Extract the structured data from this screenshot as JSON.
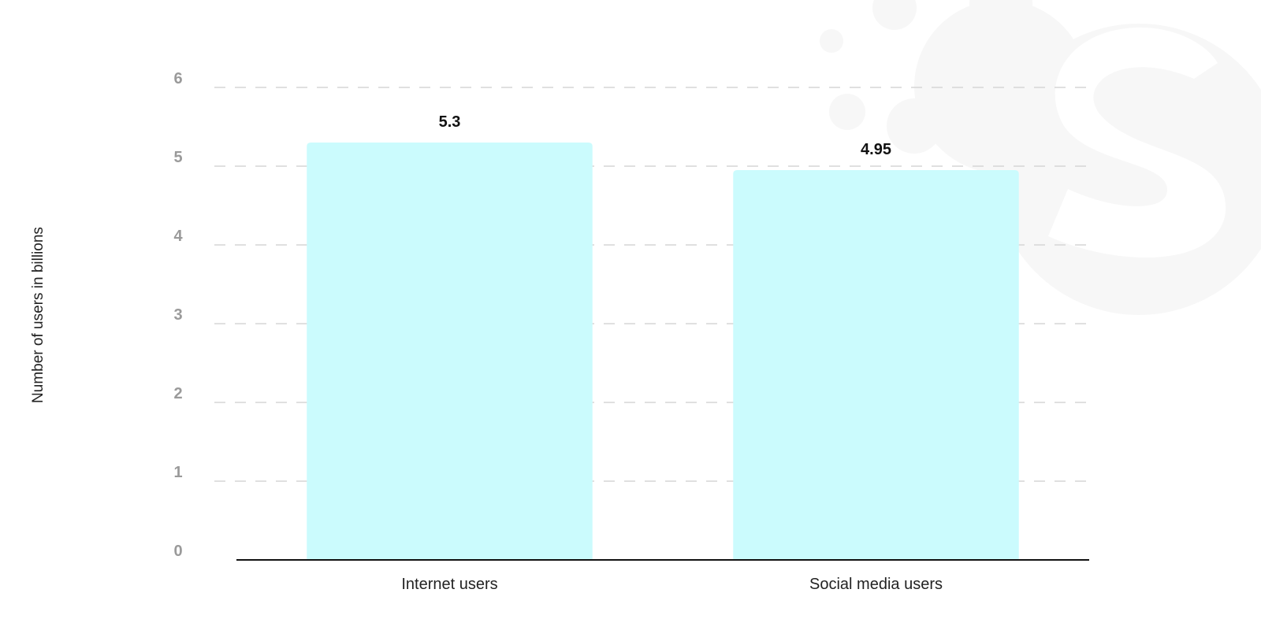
{
  "chart_data": {
    "type": "bar",
    "categories": [
      "Internet users",
      "Social media users"
    ],
    "values": [
      5.3,
      4.95
    ],
    "data_labels": [
      "5.3",
      "4.95"
    ],
    "title": "",
    "xlabel": "",
    "ylabel": "Number of users in billions",
    "ylim": [
      0,
      6
    ],
    "yticks": [
      "0",
      "1",
      "2",
      "3",
      "4",
      "5",
      "6"
    ],
    "grid": true,
    "legend": "none"
  },
  "colors": {
    "bar": "#cbfbfd",
    "gridline": "#d6d6d6",
    "axis": "#111111",
    "watermark": "#f7f7f7"
  },
  "watermark_icon": "statista-logo-icon"
}
